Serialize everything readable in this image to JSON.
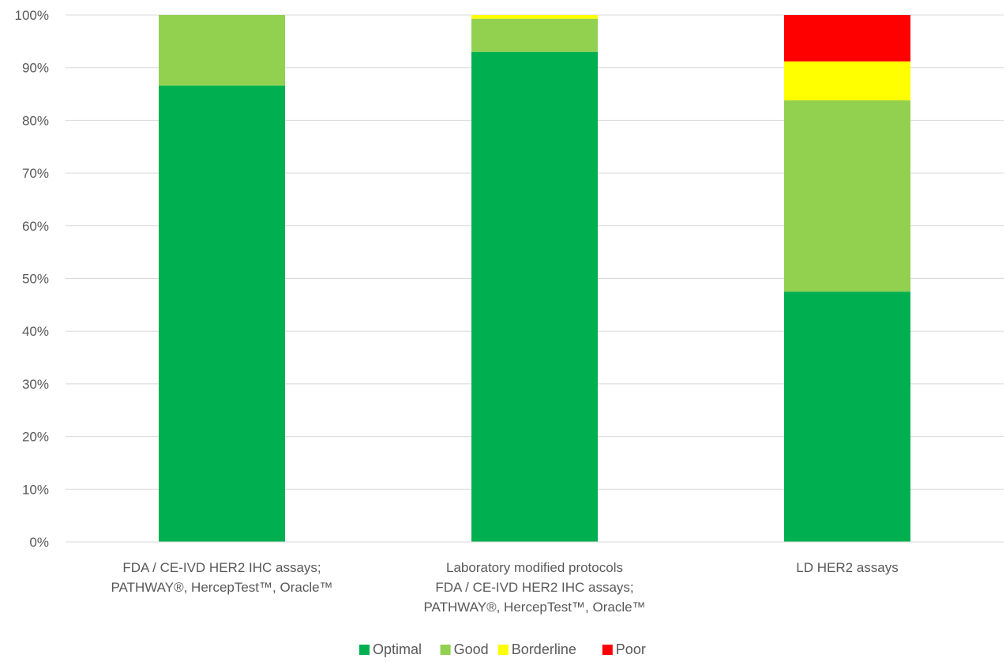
{
  "chart_data": {
    "type": "bar",
    "stacked": true,
    "percent": true,
    "categories": [
      [
        "FDA / CE-IVD HER2 IHC assays;",
        "PATHWAY®, HercepTest™, Oracle™"
      ],
      [
        "Laboratory modified protocols",
        "FDA / CE-IVD HER2 IHC assays;",
        "PATHWAY®, HercepTest™, Oracle™"
      ],
      [
        "LD HER2 assays"
      ]
    ],
    "series": [
      {
        "name": "Optimal",
        "color": "#00b050",
        "values": [
          86.6,
          93.0,
          47.5
        ]
      },
      {
        "name": "Good",
        "color": "#92d050",
        "values": [
          13.4,
          6.3,
          36.3
        ]
      },
      {
        "name": "Borderline",
        "color": "#ffff00",
        "values": [
          0,
          0.7,
          7.4
        ]
      },
      {
        "name": "Poor",
        "color": "#ff0000",
        "values": [
          0,
          0,
          8.8
        ]
      }
    ],
    "ylim": [
      0,
      100
    ],
    "yticks": [
      "0%",
      "10%",
      "20%",
      "30%",
      "40%",
      "50%",
      "60%",
      "70%",
      "80%",
      "90%",
      "100%"
    ],
    "grid": true,
    "legend": "bottom",
    "xlabel": "",
    "ylabel": "",
    "title": ""
  }
}
